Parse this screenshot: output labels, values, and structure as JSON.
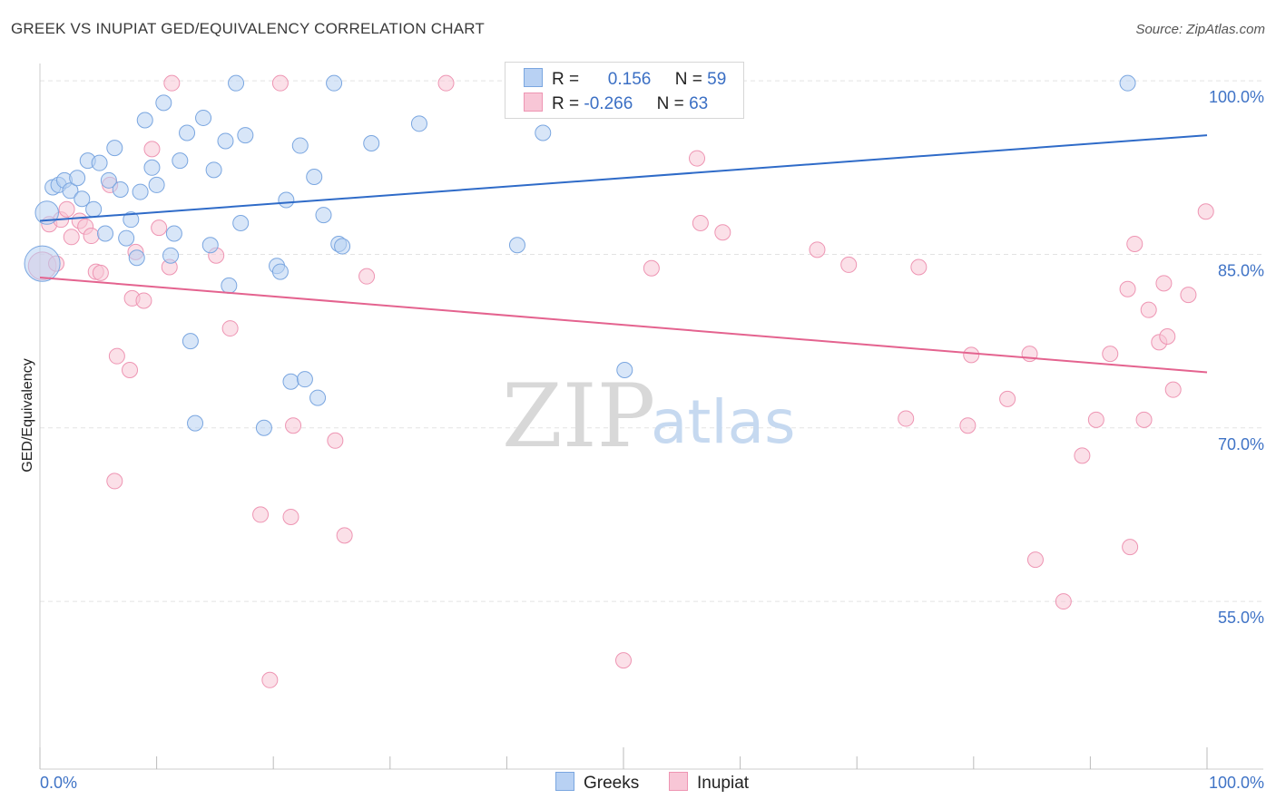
{
  "header": {
    "title": "GREEK VS INUPIAT GED/EQUIVALENCY CORRELATION CHART",
    "source": "Source: ZipAtlas.com"
  },
  "watermark": {
    "zip": "ZIP",
    "atlas": "atlas"
  },
  "stats": [
    {
      "r_label": "R =",
      "r_value": "0.156",
      "n_label": "N =",
      "n_value": "59"
    },
    {
      "r_label": "R =",
      "r_value": "-0.266",
      "n_label": "N =",
      "n_value": "63"
    }
  ],
  "legend": {
    "greeks": "Greeks",
    "inupiat": "Inupiat"
  },
  "colors": {
    "greeks_fill": "#b8d1f3",
    "greeks_stroke": "#7aa6e0",
    "greeks_line": "#2f6bc8",
    "inupiat_fill": "#f8c6d6",
    "inupiat_stroke": "#ee95b3",
    "inupiat_line": "#e4638f",
    "tick_label": "#3f73c6",
    "grid": "#e3e3e3"
  },
  "chart_data": {
    "type": "scatter",
    "title": "GREEK VS INUPIAT GED/EQUIVALENCY CORRELATION CHART",
    "xlabel": "",
    "ylabel": "GED/Equivalency",
    "xlim": [
      0,
      100
    ],
    "ylim": [
      40.5,
      101.5
    ],
    "x_tick_labels": [
      "0.0%",
      "100.0%"
    ],
    "y_ticks": [
      {
        "value": 100,
        "label": "100.0%"
      },
      {
        "value": 85,
        "label": "85.0%"
      },
      {
        "value": 70,
        "label": "70.0%"
      },
      {
        "value": 55,
        "label": "55.0%"
      }
    ],
    "grid": "horizontal dashed",
    "legend_position": "bottom-center",
    "series": [
      {
        "name": "Greeks",
        "trend": {
          "x0": 0,
          "y0": 87.9,
          "x1": 100,
          "y1": 95.3
        },
        "points": [
          [
            0.2,
            84.2,
            2.3
          ],
          [
            0.6,
            88.6,
            1.5
          ],
          [
            1.1,
            90.8,
            1
          ],
          [
            1.6,
            91.0,
            1
          ],
          [
            2.1,
            91.4,
            1
          ],
          [
            2.6,
            90.5,
            1
          ],
          [
            3.2,
            91.6,
            1
          ],
          [
            3.6,
            89.8,
            1
          ],
          [
            4.1,
            93.1,
            1
          ],
          [
            4.6,
            88.9,
            1
          ],
          [
            5.1,
            92.9,
            1
          ],
          [
            5.6,
            86.8,
            1
          ],
          [
            5.9,
            91.4,
            1
          ],
          [
            6.4,
            94.2,
            1
          ],
          [
            6.9,
            90.6,
            1
          ],
          [
            7.4,
            86.4,
            1
          ],
          [
            7.8,
            88.0,
            1
          ],
          [
            8.3,
            84.7,
            1
          ],
          [
            8.6,
            90.4,
            1
          ],
          [
            9.0,
            96.6,
            1
          ],
          [
            9.6,
            92.5,
            1
          ],
          [
            10.0,
            91.0,
            1
          ],
          [
            10.6,
            98.1,
            1
          ],
          [
            11.2,
            84.9,
            1
          ],
          [
            11.5,
            86.8,
            1
          ],
          [
            12.0,
            93.1,
            1
          ],
          [
            12.6,
            95.5,
            1
          ],
          [
            12.9,
            77.5,
            1
          ],
          [
            13.3,
            70.4,
            1
          ],
          [
            14.0,
            96.8,
            1
          ],
          [
            14.6,
            85.8,
            1
          ],
          [
            14.9,
            92.3,
            1
          ],
          [
            15.9,
            94.8,
            1
          ],
          [
            16.2,
            82.3,
            1
          ],
          [
            16.8,
            99.8,
            1
          ],
          [
            17.2,
            87.7,
            1
          ],
          [
            17.6,
            95.3,
            1
          ],
          [
            19.2,
            70.0,
            1
          ],
          [
            20.3,
            84.0,
            1
          ],
          [
            20.6,
            83.5,
            1
          ],
          [
            21.1,
            89.7,
            1
          ],
          [
            21.5,
            74.0,
            1
          ],
          [
            22.3,
            94.4,
            1
          ],
          [
            22.7,
            74.2,
            1
          ],
          [
            23.5,
            91.7,
            1
          ],
          [
            23.8,
            72.6,
            1
          ],
          [
            24.3,
            88.4,
            1
          ],
          [
            25.2,
            99.8,
            1
          ],
          [
            25.6,
            85.9,
            1
          ],
          [
            25.9,
            85.7,
            1
          ],
          [
            28.4,
            94.6,
            1
          ],
          [
            32.5,
            96.3,
            1
          ],
          [
            41.4,
            97.7,
            1
          ],
          [
            43.1,
            95.5,
            1
          ],
          [
            40.9,
            85.8,
            1
          ],
          [
            50.1,
            75.0,
            1
          ],
          [
            51.4,
            99.8,
            1
          ],
          [
            56.2,
            99.8,
            1
          ],
          [
            93.2,
            99.8,
            1
          ]
        ]
      },
      {
        "name": "Inupiat",
        "trend": {
          "x0": 0,
          "y0": 83.0,
          "x1": 100,
          "y1": 74.8
        },
        "points": [
          [
            0.2,
            84.0,
            1.8
          ],
          [
            0.8,
            87.6,
            1
          ],
          [
            1.4,
            84.2,
            1
          ],
          [
            1.8,
            88.0,
            1
          ],
          [
            2.3,
            88.9,
            1
          ],
          [
            2.7,
            86.5,
            1
          ],
          [
            3.4,
            87.9,
            1
          ],
          [
            3.9,
            87.4,
            1
          ],
          [
            4.4,
            86.6,
            1
          ],
          [
            4.8,
            83.5,
            1
          ],
          [
            5.2,
            83.4,
            1
          ],
          [
            6.0,
            91.0,
            1
          ],
          [
            6.4,
            65.4,
            1
          ],
          [
            6.6,
            76.2,
            1
          ],
          [
            7.7,
            75.0,
            1
          ],
          [
            7.9,
            81.2,
            1
          ],
          [
            8.2,
            85.2,
            1
          ],
          [
            8.9,
            81.0,
            1
          ],
          [
            9.6,
            94.1,
            1
          ],
          [
            10.2,
            87.3,
            1
          ],
          [
            11.1,
            83.9,
            1
          ],
          [
            11.3,
            99.8,
            1
          ],
          [
            15.1,
            84.9,
            1
          ],
          [
            16.3,
            78.6,
            1
          ],
          [
            18.9,
            62.5,
            1
          ],
          [
            19.7,
            48.2,
            1
          ],
          [
            20.6,
            99.8,
            1
          ],
          [
            21.5,
            62.3,
            1
          ],
          [
            21.7,
            70.2,
            1
          ],
          [
            25.3,
            68.9,
            1
          ],
          [
            26.1,
            60.7,
            1
          ],
          [
            28.0,
            83.1,
            1
          ],
          [
            34.8,
            99.8,
            1
          ],
          [
            47.3,
            99.8,
            1
          ],
          [
            50.0,
            49.9,
            1
          ],
          [
            52.4,
            83.8,
            1
          ],
          [
            56.3,
            93.3,
            1
          ],
          [
            56.6,
            87.7,
            1
          ],
          [
            58.5,
            86.9,
            1
          ],
          [
            66.6,
            85.4,
            1
          ],
          [
            69.3,
            84.1,
            1
          ],
          [
            74.2,
            70.8,
            1
          ],
          [
            75.3,
            83.9,
            1
          ],
          [
            79.5,
            70.2,
            1
          ],
          [
            79.8,
            76.3,
            1
          ],
          [
            82.9,
            72.5,
            1
          ],
          [
            84.8,
            76.4,
            1
          ],
          [
            85.3,
            58.6,
            1
          ],
          [
            87.7,
            55.0,
            1
          ],
          [
            89.3,
            67.6,
            1
          ],
          [
            90.5,
            70.7,
            1
          ],
          [
            91.7,
            76.4,
            1
          ],
          [
            93.2,
            82.0,
            1
          ],
          [
            93.4,
            59.7,
            1
          ],
          [
            93.8,
            85.9,
            1
          ],
          [
            94.6,
            70.7,
            1
          ],
          [
            95.0,
            80.2,
            1
          ],
          [
            95.9,
            77.4,
            1
          ],
          [
            96.3,
            82.5,
            1
          ],
          [
            96.6,
            77.9,
            1
          ],
          [
            97.1,
            73.3,
            1
          ],
          [
            98.4,
            81.5,
            1
          ],
          [
            99.9,
            88.7,
            1
          ]
        ]
      }
    ]
  }
}
